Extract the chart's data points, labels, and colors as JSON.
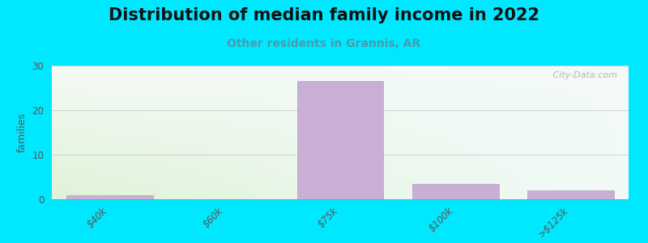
{
  "title": "Distribution of median family income in 2022",
  "subtitle": "Other residents in Grannis, AR",
  "ylabel": "families",
  "categories": [
    "$40k",
    "$60k",
    "$75k",
    "$100k",
    ">$125k"
  ],
  "values": [
    1,
    0,
    26.5,
    3.5,
    2
  ],
  "bar_color": "#c9afd4",
  "bar_edge_color": "#b8a0c8",
  "ylim": [
    0,
    30
  ],
  "yticks": [
    0,
    10,
    20,
    30
  ],
  "background_color": "#00e8ff",
  "plot_bg_top": "#f5faf0",
  "plot_bg_bottom": "#dff0d8",
  "plot_bg_right": "#e8f5f8",
  "watermark": " City-Data.com",
  "title_fontsize": 15,
  "subtitle_fontsize": 10,
  "subtitle_color": "#4a9aaa",
  "ylabel_color": "#555555",
  "ylabel_fontsize": 9,
  "ytick_color": "#555555",
  "xtick_color": "#555555",
  "grid_color": "#cccccc",
  "bar_width": 0.75
}
